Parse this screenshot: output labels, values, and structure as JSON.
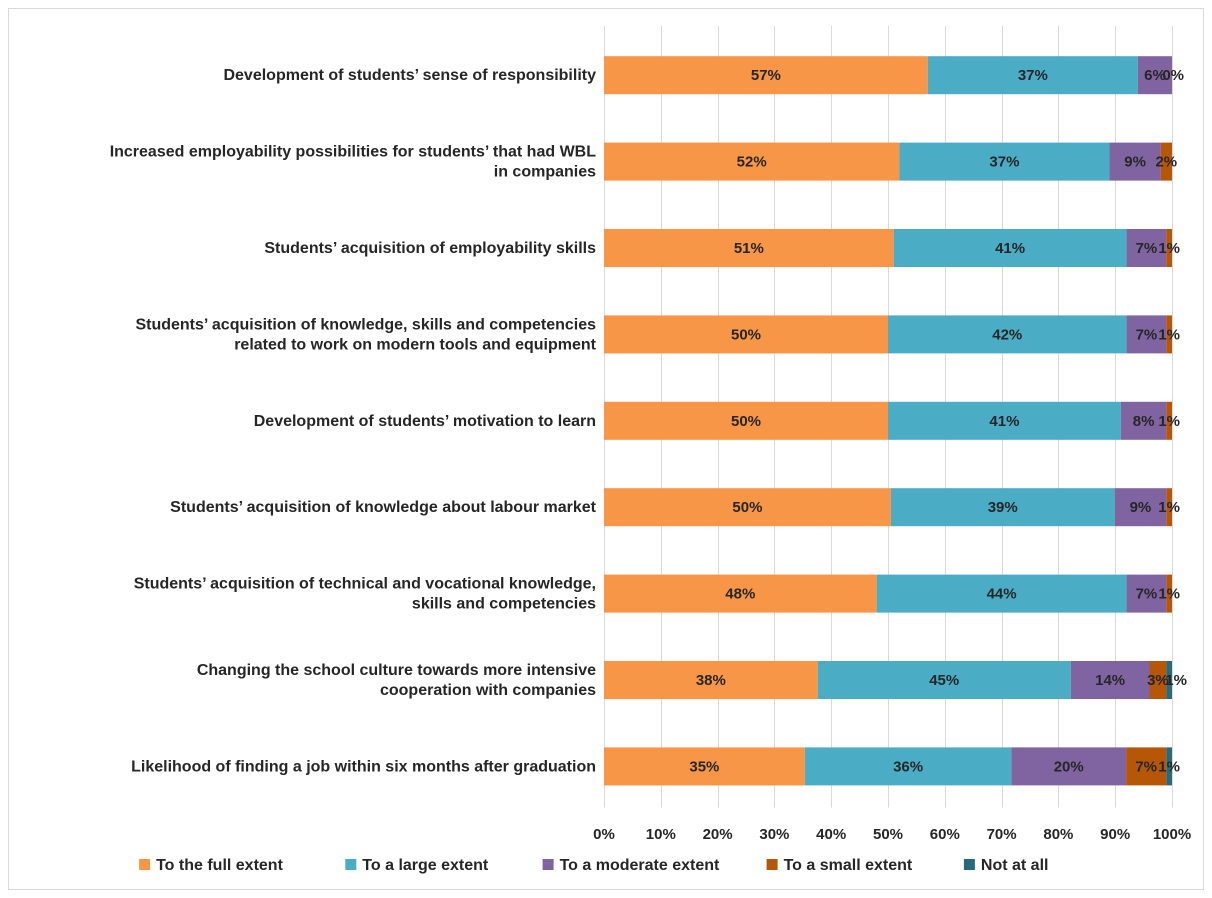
{
  "chart_data": {
    "type": "bar",
    "orientation": "horizontal",
    "stacked": "percent",
    "categories": [
      "Development of students’ sense of responsibility",
      "Increased employability possibilities for students’ that had WBL in companies",
      "Students’ acquisition of employability skills",
      "Students’ acquisition of knowledge, skills and competencies related to work on modern tools and equipment",
      "Development of students’ motivation to learn",
      "Students’ acquisition of knowledge about labour market",
      "Students’ acquisition of technical and vocational knowledge, skills and competencies",
      "Changing the school culture towards more intensive cooperation with companies",
      "Likelihood of finding a job within six months after graduation"
    ],
    "category_lines": [
      [
        "Development of students’ sense of responsibility"
      ],
      [
        "Increased employability possibilities for students’ that had WBL",
        "in companies"
      ],
      [
        "Students’ acquisition of employability skills"
      ],
      [
        "Students’ acquisition of knowledge, skills and competencies",
        "related to work on modern tools and equipment"
      ],
      [
        "Development of students’ motivation to learn"
      ],
      [
        "Students’ acquisition of knowledge about labour market"
      ],
      [
        "Students’ acquisition of technical and vocational knowledge,",
        "skills and competencies"
      ],
      [
        "Changing the school culture towards more intensive",
        "cooperation with companies"
      ],
      [
        "Likelihood of finding a job within six months after graduation"
      ]
    ],
    "series": [
      {
        "name": "To the full extent",
        "color": "#F79646",
        "values": [
          57,
          52,
          51,
          50,
          50,
          50,
          48,
          38,
          35
        ]
      },
      {
        "name": "To a large extent",
        "color": "#4BACC6",
        "values": [
          37,
          37,
          41,
          42,
          41,
          39,
          44,
          45,
          36
        ]
      },
      {
        "name": "To a moderate extent",
        "color": "#8064A2",
        "values": [
          6,
          9,
          7,
          7,
          8,
          9,
          7,
          14,
          20
        ]
      },
      {
        "name": "To a small extent",
        "color": "#B65708",
        "values": [
          0,
          2,
          1,
          1,
          1,
          1,
          1,
          3,
          7
        ]
      },
      {
        "name": "Not at all",
        "color": "#276A7C",
        "values": [
          0,
          0,
          0,
          0,
          0,
          0,
          0,
          1,
          1
        ]
      }
    ],
    "labels": [
      [
        "57%",
        "37%",
        "6%",
        "0%",
        ""
      ],
      [
        "52%",
        "37%",
        "9%",
        "2%",
        ""
      ],
      [
        "51%",
        "41%",
        "7%",
        "1%",
        ""
      ],
      [
        "50%",
        "42%",
        "7%",
        "1%",
        ""
      ],
      [
        "50%",
        "41%",
        "8%",
        "1%",
        ""
      ],
      [
        "50%",
        "39%",
        "9%",
        "1%",
        ""
      ],
      [
        "48%",
        "44%",
        "7%",
        "1%",
        ""
      ],
      [
        "38%",
        "45%",
        "14%",
        "3%",
        "1%"
      ],
      [
        "35%",
        "36%",
        "20%",
        "7%",
        "1%"
      ]
    ],
    "xticks": [
      "0%",
      "10%",
      "20%",
      "30%",
      "40%",
      "50%",
      "60%",
      "70%",
      "80%",
      "90%",
      "100%"
    ],
    "xlim": [
      0,
      100
    ],
    "grid": true,
    "legend_position": "bottom",
    "title": "",
    "xlabel": "",
    "ylabel": ""
  }
}
